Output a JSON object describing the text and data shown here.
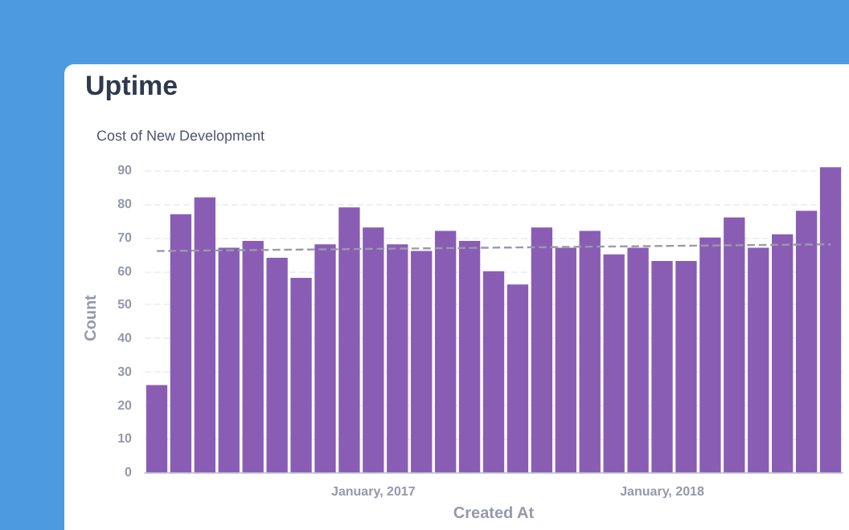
{
  "chart_data": {
    "type": "bar",
    "title": "Uptime",
    "subtitle": "Cost of New Development",
    "xlabel": "Created At",
    "ylabel": "Count",
    "categories": [
      null,
      null,
      null,
      null,
      null,
      null,
      null,
      null,
      null,
      "January, 2017",
      null,
      null,
      null,
      null,
      null,
      null,
      null,
      null,
      null,
      null,
      null,
      "January, 2018",
      null,
      null,
      null,
      null,
      null,
      null,
      null
    ],
    "series": [
      {
        "color": "#8a5db5",
        "values": [
          26,
          77,
          82,
          67,
          69,
          64,
          58,
          68,
          79,
          73,
          68,
          66,
          72,
          69,
          60,
          56,
          73,
          67,
          72,
          65,
          67,
          63,
          63,
          70,
          76,
          67,
          71,
          78,
          91
        ]
      },
      {
        "type": "line",
        "color": "#9b9aa8",
        "line_style": "dashed",
        "values": [
          66,
          null,
          null,
          null,
          null,
          null,
          null,
          null,
          null,
          null,
          null,
          null,
          null,
          null,
          null,
          null,
          null,
          null,
          null,
          null,
          null,
          null,
          null,
          null,
          null,
          null,
          null,
          null,
          68
        ]
      }
    ],
    "ylim": [
      0,
      92
    ],
    "yticks": [
      0,
      10,
      20,
      30,
      40,
      50,
      60,
      70,
      80,
      90
    ],
    "grid": "y"
  }
}
